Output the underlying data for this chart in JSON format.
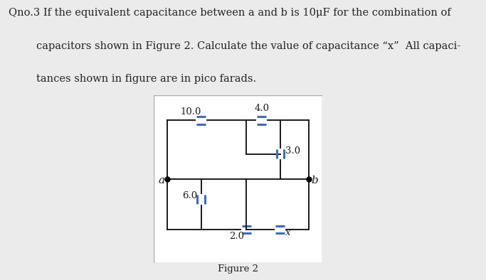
{
  "title_line1": "Qno.3 If the equivalent capacitance between a and b is 10μF for the combination of",
  "title_line2": "capacitors shown in Figure 2. Calculate the value of capacitance “x”  All capaci-",
  "title_line3": "tances shown in figure are in pico farads.",
  "figure_label": "Figure 2",
  "bg_color": "#ebebeb",
  "box_bg": "#ffffff",
  "cap_color": "#3a6bc4",
  "line_color": "#1a1a1a",
  "font_size_text": 10.5,
  "font_size_label": 9.5
}
